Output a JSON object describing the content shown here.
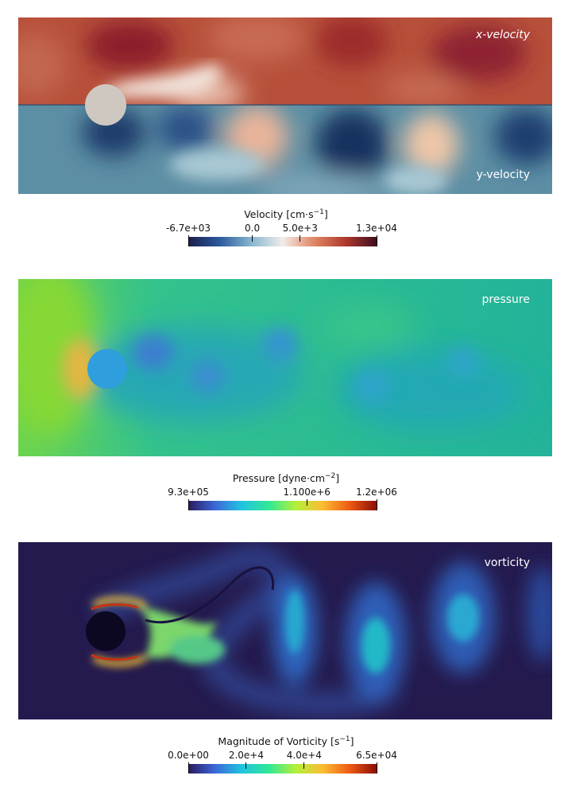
{
  "panels": {
    "velocity": {
      "top_label": "x-velocity",
      "bottom_label": "y-velocity"
    },
    "pressure": {
      "label": "pressure"
    },
    "vorticity": {
      "label": "vorticity"
    }
  },
  "colorbars": {
    "velocity": {
      "title": "Velocity [cm·s",
      "title_exp": "−1",
      "title_end": "]",
      "ticks": [
        "-6.7e+03",
        "0.0",
        "5.0e+3",
        "1.3e+04"
      ],
      "range": [
        -6700,
        13000
      ],
      "tick_values": [
        -6700,
        0,
        5000,
        13000
      ],
      "colormap": [
        "#1a1e4c",
        "#2c5a9c",
        "#86b6d0",
        "#f2ecea",
        "#e08864",
        "#b03a2e",
        "#400e20"
      ]
    },
    "pressure": {
      "title": "Pressure [dyne·cm",
      "title_exp": "−2",
      "title_end": "]",
      "ticks": [
        "9.3e+05",
        "1.100e+6",
        "1.2e+06"
      ],
      "range": [
        930000,
        1200000
      ],
      "tick_values": [
        930000,
        1100000,
        1200000
      ],
      "colormap": [
        "#2a1a5e",
        "#3c68d8",
        "#21c4e0",
        "#30e896",
        "#b4f03a",
        "#fcbc32",
        "#ee5a14",
        "#8a0e04"
      ]
    },
    "vorticity": {
      "title": "Magnitude of Vorticity [s",
      "title_exp": "−1",
      "title_end": "]",
      "ticks": [
        "0.0e+00",
        "2.0e+4",
        "4.0e+4",
        "6.5e+04"
      ],
      "range": [
        0,
        65000
      ],
      "tick_values": [
        0,
        20000,
        40000,
        65000
      ],
      "colormap": [
        "#2a1a5e",
        "#3c68d8",
        "#21c4e0",
        "#30e896",
        "#b4f03a",
        "#fcbc32",
        "#ee5a14",
        "#8a0e04"
      ]
    }
  }
}
